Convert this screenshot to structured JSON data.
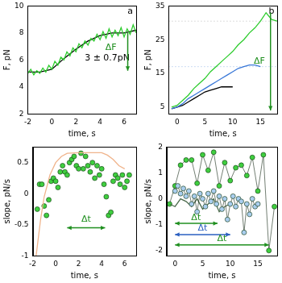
{
  "chart_data": [
    {
      "type": "line",
      "x_label": "time, s",
      "y_label": "F, pN",
      "xlim": [
        -2,
        7
      ],
      "xticks": [
        -2,
        0,
        2,
        4,
        6
      ],
      "ylim": [
        2,
        10
      ],
      "yticks": [
        2,
        4,
        6,
        8,
        10
      ],
      "grid": false,
      "series": [
        {
          "color": "#2ecc2e",
          "marker": "none",
          "x": [
            -2,
            -1.75,
            -1.5,
            -1.25,
            -1,
            -0.75,
            -0.5,
            -0.25,
            0,
            0.25,
            0.5,
            0.75,
            1,
            1.25,
            1.5,
            1.75,
            2,
            2.25,
            2.5,
            2.75,
            3,
            3.25,
            3.5,
            3.75,
            4,
            4.25,
            4.5,
            4.75,
            5,
            5.25,
            5.5,
            5.75,
            6,
            6.25,
            6.5,
            6.75,
            7
          ],
          "values": [
            5.0,
            5.3,
            4.9,
            5.2,
            5.0,
            5.4,
            5.1,
            5.6,
            5.3,
            5.9,
            5.6,
            6.2,
            6.0,
            6.6,
            6.3,
            6.9,
            6.6,
            7.2,
            6.9,
            7.4,
            7.1,
            7.6,
            7.4,
            7.9,
            7.5,
            8.1,
            7.6,
            8.3,
            7.7,
            8.2,
            7.8,
            8.4,
            7.7,
            8.3,
            7.9,
            8.6,
            8.0
          ]
        },
        {
          "color": "#000000",
          "marker": "none",
          "x": [
            -2,
            -1,
            0,
            1,
            2,
            3,
            4,
            5,
            6,
            7
          ],
          "values": [
            5.1,
            5.1,
            5.3,
            6.1,
            6.8,
            7.4,
            7.8,
            8.0,
            8.0,
            8.2
          ]
        }
      ],
      "annotations": [
        {
          "text": "a",
          "x": 6.5,
          "y": 9.6,
          "color": "#000000"
        },
        {
          "text": "ΔF",
          "x": 4.9,
          "y": 6.9,
          "color": "#1f8f1f"
        },
        {
          "text": "3 ± 0.7pN",
          "x": 4.6,
          "y": 6.1,
          "color": "#000000"
        },
        {
          "x": 6.3,
          "y": 8.0,
          "x2": 6.3,
          "y2": 5.2,
          "color": "#1f8f1f",
          "marker": "arrow_end"
        }
      ]
    },
    {
      "type": "line",
      "x_label": "time, s",
      "y_label": "F, pN",
      "xlim": [
        -1.5,
        18
      ],
      "xticks": [
        0,
        5,
        10,
        15
      ],
      "ylim": [
        3,
        35
      ],
      "yticks": [
        5,
        15,
        25,
        35
      ],
      "grid": false,
      "series": [
        {
          "color": "#2ecc2e",
          "marker": "none",
          "x": [
            -1,
            0,
            1,
            2,
            3,
            4,
            5,
            6,
            7,
            8,
            9,
            10,
            11,
            12,
            13,
            14,
            15,
            16,
            17,
            18
          ],
          "values": [
            5,
            5.5,
            7,
            8.5,
            10.5,
            12,
            13.5,
            15.5,
            17,
            18.5,
            20,
            21.5,
            23.5,
            25,
            27,
            28.5,
            30.5,
            33,
            31,
            30.5
          ]
        },
        {
          "color": "#3a78d8",
          "marker": "none",
          "x": [
            -1,
            0,
            1,
            2,
            3,
            4,
            5,
            6,
            7,
            8,
            9,
            10,
            11,
            12,
            13,
            14,
            15
          ],
          "values": [
            4.5,
            5,
            6,
            7.5,
            8.5,
            9.5,
            10.5,
            11.5,
            12.5,
            13.5,
            14.5,
            15.5,
            16.5,
            17,
            17.5,
            17.5,
            17
          ]
        },
        {
          "color": "#000000",
          "marker": "none",
          "x": [
            -1,
            0,
            1,
            2,
            3,
            4,
            5,
            6,
            7,
            8,
            9,
            10
          ],
          "values": [
            4.5,
            5,
            5.5,
            6.5,
            7.5,
            8.5,
            9.5,
            10,
            10.5,
            11,
            11,
            11
          ]
        }
      ],
      "reference_lines": [
        {
          "y": 30.5,
          "color": "#bbbbbb",
          "line_style": "dotted"
        },
        {
          "y": 17,
          "color": "#9bbbe8",
          "line_style": "dotted"
        }
      ],
      "annotations": [
        {
          "text": "b",
          "x": 17,
          "y": 33.5,
          "color": "#000000"
        },
        {
          "text": "ΔF",
          "x": 14.8,
          "y": 18.5,
          "color": "#1f8f1f"
        },
        {
          "x": 16.8,
          "y": 33,
          "x2": 16.8,
          "y2": 4,
          "color": "#1f8f1f",
          "marker": "arrow_end"
        }
      ]
    },
    {
      "type": "scatter",
      "x_label": "time, s",
      "y_label": "slope, pN/s",
      "xlim": [
        -2,
        7
      ],
      "xticks": [
        -2,
        0,
        2,
        4,
        6
      ],
      "ylim": [
        -1,
        0.75
      ],
      "yticks": [
        -1,
        -0.5,
        0,
        0.5
      ],
      "grid": false,
      "series": [
        {
          "type": "line",
          "color": "#f0b48c",
          "marker": "none",
          "x": [
            -1.7,
            -1.3,
            -1,
            -0.5,
            0,
            0.5,
            1,
            2,
            3,
            4,
            4.5,
            5,
            5.5,
            6
          ],
          "values": [
            -1.0,
            -0.4,
            -0.05,
            0.3,
            0.5,
            0.6,
            0.65,
            0.66,
            0.66,
            0.66,
            0.62,
            0.55,
            0.45,
            0.4
          ]
        },
        {
          "color": "#3fcf3f",
          "marker": "circle",
          "x": [
            -1.6,
            -1.4,
            -1.2,
            -1.0,
            -0.8,
            -0.6,
            -0.4,
            -0.2,
            0,
            0.2,
            0.4,
            0.6,
            0.8,
            1.0,
            1.2,
            1.4,
            1.6,
            1.8,
            2.0,
            2.2,
            2.4,
            2.6,
            2.8,
            3.0,
            3.2,
            3.4,
            3.6,
            3.8,
            4.0,
            4.2,
            4.4,
            4.6,
            4.8,
            5.0,
            5.2,
            5.4,
            5.6,
            5.8,
            6.0,
            6.2,
            6.4
          ],
          "values": [
            -0.25,
            0.15,
            0.15,
            -0.2,
            -0.35,
            -0.1,
            0.2,
            0.25,
            0.2,
            0.1,
            0.35,
            0.45,
            0.35,
            0.3,
            0.5,
            0.55,
            0.6,
            0.45,
            0.4,
            0.65,
            0.4,
            0.6,
            0.45,
            0.35,
            0.5,
            0.25,
            0.45,
            0.3,
            0.4,
            0.15,
            -0.05,
            -0.35,
            -0.3,
            0.2,
            0.3,
            0.25,
            0.15,
            0.3,
            0.1,
            0.2,
            0.3
          ]
        }
      ],
      "annotations": [
        {
          "text": "Δt",
          "x": 2.65,
          "y": -0.42,
          "color": "#1f8f1f"
        },
        {
          "x": 1,
          "y": -0.55,
          "x2": 4.3,
          "y2": -0.55,
          "color": "#1f8f1f",
          "marker": "arrow_both"
        }
      ]
    },
    {
      "type": "line",
      "x_label": "time, s",
      "y_label": "slope, pN/s",
      "xlim": [
        -1.5,
        18.5
      ],
      "xticks": [
        0,
        5,
        10,
        15
      ],
      "ylim": [
        -2.2,
        2
      ],
      "yticks": [
        -2,
        -1,
        0,
        1,
        2
      ],
      "grid": false,
      "series": [
        {
          "color": "#a9cdee",
          "marker": "circle",
          "x": [
            0,
            0.5,
            1,
            1.5,
            2,
            2.5,
            3,
            3.5,
            4,
            4.5,
            5,
            5.5,
            6,
            6.5,
            7,
            7.5,
            8,
            8.5,
            9,
            9.5,
            10,
            10.5,
            11,
            11.5,
            12,
            12.5,
            13,
            13.5,
            14,
            14.5,
            15
          ],
          "values": [
            0.3,
            0.5,
            0.2,
            0.4,
            0.1,
            0.3,
            -0.2,
            0.1,
            -0.5,
            0.2,
            0,
            -0.3,
            0.2,
            -0.1,
            0.3,
            -0.2,
            0.1,
            -0.4,
            0,
            -0.8,
            -0.2,
            0.1,
            -0.3,
            0,
            -0.1,
            -1.3,
            -0.2,
            -0.6,
            0,
            -0.3,
            -0.2
          ]
        },
        {
          "color": "#4d6b4d",
          "marker": "none",
          "x": [
            -1,
            0,
            1,
            2,
            3,
            4,
            5,
            6,
            7,
            8,
            9,
            10
          ],
          "values": [
            -0.2,
            -0.3,
            0,
            -0.1,
            -0.3,
            0,
            -0.4,
            -0.2,
            0,
            -0.5,
            -0.3,
            -0.2
          ]
        },
        {
          "color": "#3fcf3f",
          "marker": "circle",
          "x": [
            -1,
            0,
            1,
            2,
            3,
            4,
            5,
            6,
            7,
            8,
            9,
            10,
            11,
            12,
            13,
            14,
            15,
            16,
            17,
            18
          ],
          "values": [
            -0.2,
            0.5,
            1.3,
            1.5,
            1.5,
            0.6,
            1.7,
            1.1,
            1.8,
            0.5,
            1.4,
            0.7,
            1.2,
            1.3,
            0.9,
            1.6,
            0.3,
            1.7,
            -2.0,
            -0.3
          ]
        }
      ],
      "annotations": [
        {
          "text": "Δt",
          "x": 3.8,
          "y": -0.72,
          "color": "#1f8f1f"
        },
        {
          "x": 0,
          "y": -0.95,
          "x2": 7.7,
          "y2": -0.95,
          "color": "#1f8f1f",
          "marker": "arrow_both"
        },
        {
          "text": "Δt",
          "x": 5,
          "y": -1.15,
          "color": "#2a5fc0"
        },
        {
          "x": 0,
          "y": -1.38,
          "x2": 10,
          "y2": -1.38,
          "color": "#2a5fc0",
          "marker": "arrow_both"
        },
        {
          "text": "Δt",
          "x": 8.5,
          "y": -1.55,
          "color": "#1f8f1f"
        },
        {
          "x": 0,
          "y": -1.78,
          "x2": 17,
          "y2": -1.78,
          "color": "#1f8f1f",
          "marker": "arrow_both"
        }
      ]
    }
  ]
}
